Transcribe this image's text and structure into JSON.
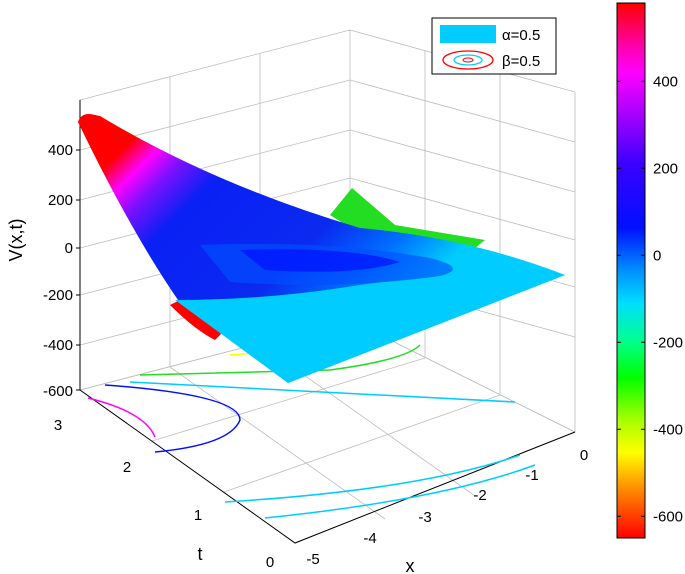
{
  "chart_data": {
    "type": "surface",
    "xlabel": "x",
    "ylabel": "t",
    "zlabel": "V(x,t)",
    "x_ticks": [
      "-5",
      "-4",
      "-3",
      "-2",
      "-1",
      "0"
    ],
    "t_ticks": [
      "0",
      "1",
      "2",
      "3"
    ],
    "z_ticks": [
      "-600",
      "-400",
      "-200",
      "0",
      "200",
      "400"
    ],
    "xlim": [
      -5,
      0
    ],
    "tlim": [
      0,
      3
    ],
    "zlim": [
      -600,
      550
    ],
    "grid": true,
    "legend": {
      "placement": "top-right",
      "entries": [
        {
          "label": "α=0.5",
          "style": "filled-patch",
          "color": "#00ccff"
        },
        {
          "label": "β=0.5",
          "style": "contour-ellipses",
          "colors": [
            "#ff0000",
            "#00ccff"
          ]
        }
      ]
    },
    "colorbar": {
      "placement": "right",
      "range": [
        -650,
        580
      ],
      "tick_values": [
        400,
        200,
        0,
        -200,
        -400,
        -600
      ],
      "tick_labels": [
        "400",
        "200",
        "0",
        "-200",
        "-400",
        "-600"
      ],
      "colormap": "hsv"
    },
    "surface_samples": [
      {
        "x": -5,
        "t": 3,
        "v": 520
      },
      {
        "x": -5,
        "t": 0,
        "v": -560
      },
      {
        "x": 0,
        "t": 3,
        "v": 0
      },
      {
        "x": 0,
        "t": 0,
        "v": -150
      },
      {
        "x": -2.5,
        "t": 1.5,
        "v": 100
      }
    ]
  },
  "colors": {
    "cyan": "#00ccff",
    "blue": "#0a1ef0",
    "magenta": "#ff00ff",
    "green": "#22dd22",
    "red": "#ff0000",
    "yellow": "#ffff00"
  }
}
